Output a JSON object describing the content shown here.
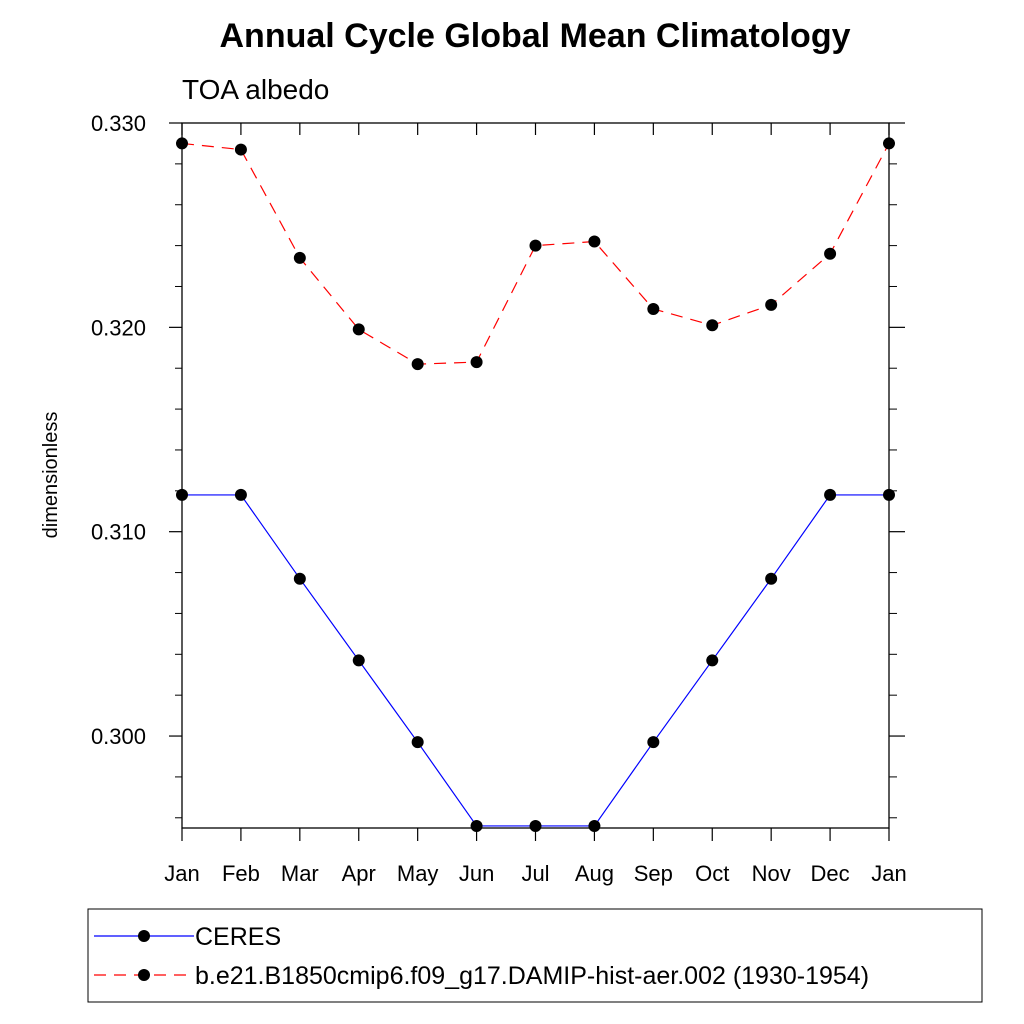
{
  "chart_data": {
    "type": "line",
    "title": "Annual Cycle Global Mean Climatology",
    "subtitle": "TOA albedo",
    "xlabel": "",
    "ylabel": "dimensionless",
    "categories": [
      "Jan",
      "Feb",
      "Mar",
      "Apr",
      "May",
      "Jun",
      "Jul",
      "Aug",
      "Sep",
      "Oct",
      "Nov",
      "Dec",
      "Jan"
    ],
    "ylim": [
      0.2955,
      0.33
    ],
    "yticks": [
      "0.300",
      "0.310",
      "0.320",
      "0.330"
    ],
    "grid": false,
    "legend_position": "bottom",
    "series": [
      {
        "name": "CERES",
        "color": "#0000ff",
        "dash": "solid",
        "marker": "filled-circle",
        "values": [
          0.3118,
          0.3118,
          0.3077,
          0.3037,
          0.2997,
          0.2956,
          0.2956,
          0.2956,
          0.2997,
          0.3037,
          0.3077,
          0.3118,
          0.3118
        ]
      },
      {
        "name": "b.e21.B1850cmip6.f09_g17.DAMIP-hist-aer.002 (1930-1954)",
        "color": "#ff0000",
        "dash": "dashed",
        "marker": "filled-circle",
        "values": [
          0.329,
          0.3287,
          0.3234,
          0.3199,
          0.3182,
          0.3183,
          0.324,
          0.3242,
          0.3209,
          0.3201,
          0.3211,
          0.3236,
          0.329
        ]
      }
    ]
  }
}
